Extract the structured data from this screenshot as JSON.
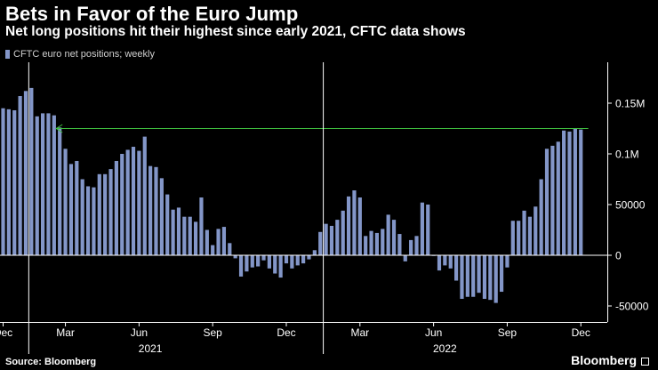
{
  "header": {
    "title": "Bets in Favor of the Euro Jump",
    "subtitle": "Net long positions hit their highest since early 2021, CFTC data shows"
  },
  "footer": {
    "source": "Source: Bloomberg",
    "brand": "Bloomberg"
  },
  "colors": {
    "background": "#000000",
    "bar": "#8396c8",
    "reference_line": "#3fbf3f",
    "axis": "#ffffff",
    "text": "#ffffff"
  },
  "chart_data": {
    "type": "bar",
    "title": "Bets in Favor of the Euro Jump",
    "subtitle": "Net long positions hit their highest since early 2021, CFTC data shows",
    "legend": "CFTC euro net positions; weekly",
    "ylim": [
      -60000,
      190000
    ],
    "yticks": [
      {
        "value": 150000,
        "label": "0.15M"
      },
      {
        "value": 100000,
        "label": "0.1M"
      },
      {
        "value": 50000,
        "label": "50000"
      },
      {
        "value": 0,
        "label": "0"
      },
      {
        "value": -50000,
        "label": "-50000"
      }
    ],
    "month_ticks": [
      {
        "index": 0,
        "label": "Dec"
      },
      {
        "index": 11,
        "label": "Mar"
      },
      {
        "index": 24,
        "label": "Jun"
      },
      {
        "index": 37,
        "label": "Sep"
      },
      {
        "index": 50,
        "label": "Dec"
      },
      {
        "index": 63,
        "label": "Mar"
      },
      {
        "index": 76,
        "label": "Jun"
      },
      {
        "index": 89,
        "label": "Sep"
      },
      {
        "index": 102,
        "label": "Dec"
      }
    ],
    "year_labels": [
      {
        "index": 26,
        "label": "2021"
      },
      {
        "index": 78,
        "label": "2022"
      }
    ],
    "year_separators": [
      5,
      57
    ],
    "reference_line": {
      "value": 125000,
      "from_index": 10,
      "to_index": 103
    },
    "values": [
      145000,
      144000,
      143000,
      157000,
      162000,
      165000,
      137000,
      140000,
      140000,
      138000,
      126000,
      105000,
      90000,
      93000,
      75000,
      68000,
      67000,
      80000,
      80000,
      85000,
      93000,
      100000,
      104000,
      107000,
      103000,
      117000,
      88000,
      87000,
      76000,
      60000,
      45000,
      47000,
      38000,
      38000,
      33000,
      57000,
      25000,
      10000,
      26000,
      28000,
      12000,
      -3000,
      -21000,
      -16000,
      -12000,
      -11000,
      -5000,
      -13000,
      -18000,
      -22000,
      -8000,
      -13000,
      -10000,
      -8000,
      -4000,
      5000,
      23000,
      31000,
      29000,
      35000,
      44000,
      58000,
      64000,
      57000,
      19000,
      24000,
      22000,
      26000,
      40000,
      35000,
      21000,
      -6000,
      15000,
      19000,
      52000,
      50000,
      0,
      -15000,
      -10000,
      -13000,
      -25000,
      -43000,
      -41000,
      -41000,
      -37000,
      -43000,
      -44000,
      -47000,
      -36000,
      -12000,
      34000,
      34000,
      44000,
      38000,
      48000,
      75000,
      105000,
      108000,
      112000,
      123000,
      122000,
      125000,
      124000
    ]
  }
}
